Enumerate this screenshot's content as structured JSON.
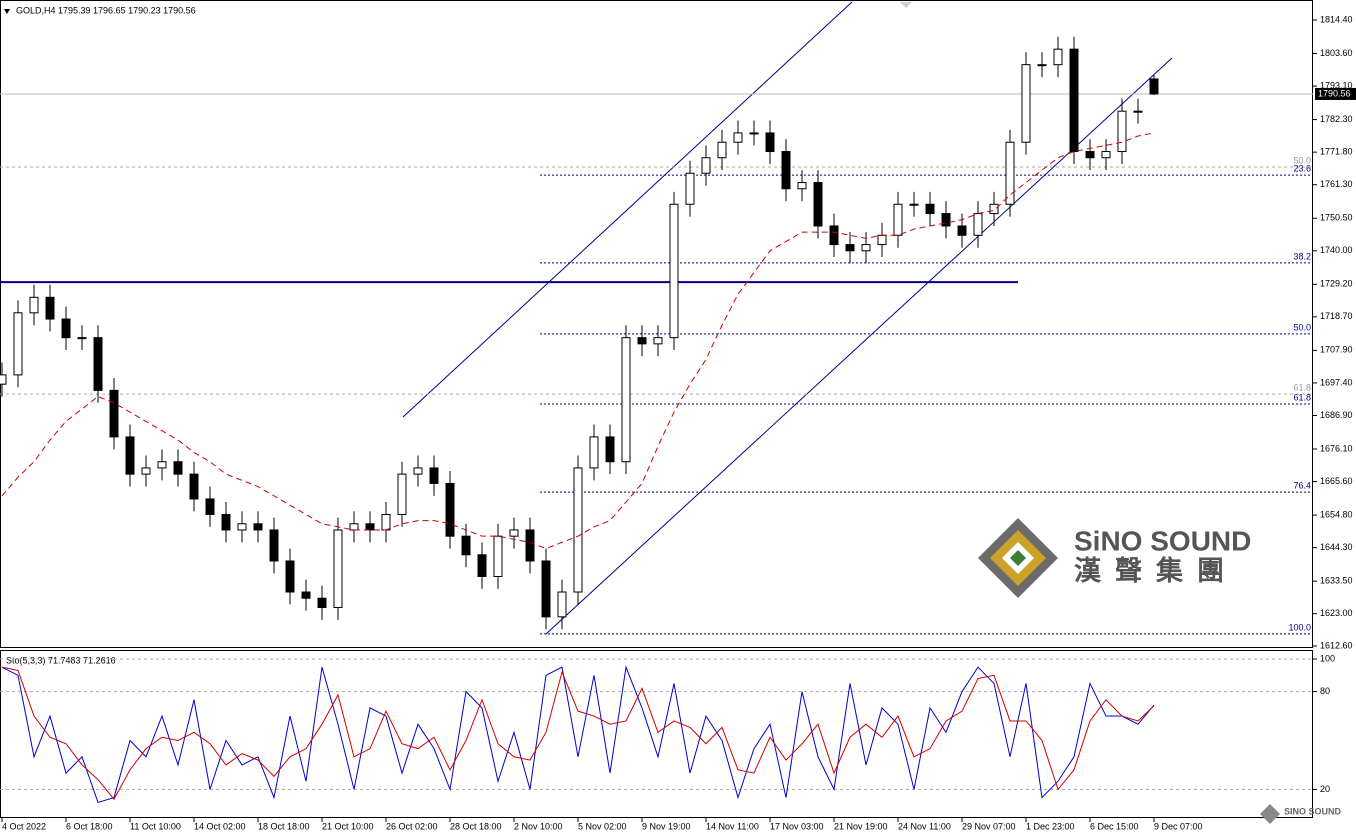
{
  "chart_data": [
    {
      "type": "candlestick",
      "header": "GOLD,H4  1795.39 1796.65 1790.23 1790.56",
      "open": [
        1697,
        1700,
        1720,
        1725,
        1718,
        1712,
        1712,
        1695,
        1680,
        1668,
        1670,
        1672,
        1668,
        1660,
        1655,
        1650,
        1652,
        1650,
        1640,
        1630,
        1628,
        1625,
        1650,
        1652,
        1650,
        1655,
        1668,
        1670,
        1665,
        1648,
        1642,
        1635,
        1648,
        1650,
        1640,
        1622,
        1630,
        1670,
        1680,
        1672,
        1712,
        1710,
        1712,
        1755,
        1765,
        1770,
        1775,
        1778,
        1778,
        1772,
        1760,
        1762,
        1748,
        1742,
        1740,
        1742,
        1745,
        1755,
        1755,
        1752,
        1748,
        1745,
        1752,
        1755,
        1775,
        1800,
        1800,
        1805,
        1772,
        1770,
        1772,
        1785,
        1795.39
      ],
      "high": [
        1704,
        1724,
        1729,
        1729,
        1722,
        1716,
        1716,
        1699,
        1684,
        1674,
        1676,
        1676,
        1672,
        1664,
        1659,
        1656,
        1656,
        1654,
        1644,
        1634,
        1632,
        1654,
        1656,
        1656,
        1659,
        1672,
        1674,
        1674,
        1669,
        1652,
        1646,
        1652,
        1654,
        1654,
        1644,
        1634,
        1674,
        1684,
        1684,
        1716,
        1716,
        1716,
        1759,
        1769,
        1774,
        1779,
        1782,
        1782,
        1782,
        1776,
        1766,
        1766,
        1752,
        1746,
        1746,
        1749,
        1759,
        1759,
        1759,
        1756,
        1752,
        1756,
        1759,
        1779,
        1804,
        1804,
        1809,
        1809,
        1776,
        1776,
        1789,
        1789,
        1796.65
      ],
      "low": [
        1693,
        1696,
        1716,
        1714,
        1708,
        1708,
        1691,
        1676,
        1664,
        1664,
        1666,
        1664,
        1656,
        1651,
        1646,
        1646,
        1646,
        1636,
        1626,
        1624,
        1621,
        1621,
        1646,
        1646,
        1646,
        1651,
        1664,
        1661,
        1644,
        1638,
        1631,
        1631,
        1644,
        1636,
        1618,
        1618,
        1626,
        1666,
        1668,
        1668,
        1706,
        1706,
        1708,
        1751,
        1761,
        1766,
        1771,
        1774,
        1768,
        1756,
        1756,
        1744,
        1738,
        1736,
        1736,
        1738,
        1741,
        1751,
        1748,
        1744,
        1741,
        1741,
        1748,
        1751,
        1771,
        1796,
        1796,
        1768,
        1766,
        1766,
        1768,
        1781,
        1790.23
      ],
      "close": [
        1700,
        1720,
        1725,
        1718,
        1712,
        1712,
        1695,
        1680,
        1668,
        1670,
        1672,
        1668,
        1660,
        1655,
        1650,
        1652,
        1650,
        1640,
        1630,
        1628,
        1625,
        1650,
        1652,
        1650,
        1655,
        1668,
        1670,
        1665,
        1648,
        1642,
        1635,
        1648,
        1650,
        1640,
        1622,
        1630,
        1670,
        1680,
        1672,
        1712,
        1710,
        1712,
        1755,
        1765,
        1770,
        1775,
        1778,
        1778,
        1772,
        1760,
        1762,
        1748,
        1742,
        1740,
        1742,
        1745,
        1755,
        1755,
        1752,
        1748,
        1745,
        1752,
        1755,
        1775,
        1800,
        1800,
        1805,
        1772,
        1770,
        1772,
        1785,
        1785,
        1790.56
      ],
      "overlays": [
        {
          "color": "#cc0000",
          "values": [
            1661,
            1667,
            1672,
            1679,
            1685,
            1689,
            1693,
            1691,
            1688,
            1685,
            1682,
            1679,
            1675,
            1672,
            1668,
            1666,
            1664,
            1661,
            1658,
            1655,
            1652,
            1651,
            1650,
            1650,
            1650,
            1652,
            1653,
            1653,
            1652,
            1650,
            1648,
            1648,
            1647,
            1646,
            1644,
            1646,
            1648,
            1651,
            1653,
            1659,
            1665,
            1677,
            1688,
            1697,
            1705,
            1716,
            1726,
            1733,
            1740,
            1743,
            1746,
            1746,
            1746,
            1745,
            1744,
            1745,
            1745,
            1747,
            1748,
            1749,
            1750,
            1752,
            1753,
            1758,
            1762,
            1766,
            1770,
            1772,
            1773,
            1774,
            1775,
            1777,
            1778
          ]
        }
      ],
      "fib_levels": [
        {
          "level": "23.6",
          "price": 1764.4
        },
        {
          "level": "38.2",
          "price": 1736.1
        },
        {
          "level": "50.0",
          "price": 1713.2
        },
        {
          "level": "61.8",
          "price": 1690.6
        },
        {
          "level": "76.4",
          "price": 1662.2
        },
        {
          "level": "100.0",
          "price": 1616.5
        }
      ],
      "gray_levels": [
        {
          "level": "50.0",
          "price": 1767
        },
        {
          "level": "61.8",
          "price": 1693.8
        }
      ],
      "hline": {
        "price": 1729.9,
        "color": "#00008b"
      },
      "xlim": [
        -0.125,
        81.9375
      ],
      "ylim": [
        1611.95,
        1820.85
      ],
      "yticks": [
        {
          "value": 1814.4,
          "label": "1814.40"
        },
        {
          "value": 1803.6,
          "label": "1803.60"
        },
        {
          "value": 1793.1,
          "label": "1793.10"
        },
        {
          "value": 1782.3,
          "label": "1782.30"
        },
        {
          "value": 1771.8,
          "label": "1771.80"
        },
        {
          "value": 1761.3,
          "label": "1761.30"
        },
        {
          "value": 1750.5,
          "label": "1750.50"
        },
        {
          "value": 1740,
          "label": "1740.00"
        },
        {
          "value": 1729.2,
          "label": "1729.20"
        },
        {
          "value": 1718.7,
          "label": "1718.70"
        },
        {
          "value": 1707.9,
          "label": "1707.90"
        },
        {
          "value": 1697.4,
          "label": "1697.40"
        },
        {
          "value": 1686.9,
          "label": "1686.90"
        },
        {
          "value": 1676.1,
          "label": "1676.10"
        },
        {
          "value": 1665.6,
          "label": "1665.60"
        },
        {
          "value": 1654.8,
          "label": "1654.80"
        },
        {
          "value": 1644.3,
          "label": "1644.30"
        },
        {
          "value": 1633.5,
          "label": "1633.50"
        },
        {
          "value": 1623,
          "label": "1623.00"
        },
        {
          "value": 1612.6,
          "label": "1612.60"
        }
      ],
      "xticks": [
        {
          "value": 0,
          "label": "4 Oct 2022"
        },
        {
          "value": 4,
          "label": "6 Oct 18:00"
        },
        {
          "value": 8,
          "label": "11 Oct 10:00"
        },
        {
          "value": 12,
          "label": "14 Oct 02:00"
        },
        {
          "value": 16,
          "label": "18 Oct 18:00"
        },
        {
          "value": 20,
          "label": "21 Oct 10:00"
        },
        {
          "value": 24,
          "label": "26 Oct 02:00"
        },
        {
          "value": 28,
          "label": "28 Oct 18:00"
        },
        {
          "value": 32,
          "label": "2 Nov 10:00"
        },
        {
          "value": 36,
          "label": "5 Nov 02:00"
        },
        {
          "value": 40,
          "label": "9 Nov 19:00"
        },
        {
          "value": 44,
          "label": "14 Nov 11:00"
        },
        {
          "value": 48,
          "label": "17 Nov 03:00"
        },
        {
          "value": 52,
          "label": "21 Nov 19:00"
        },
        {
          "value": 56,
          "label": "24 Nov 11:00"
        },
        {
          "value": 60,
          "label": "29 Nov 07:00"
        },
        {
          "value": 64,
          "label": "1 Dec 23:00"
        },
        {
          "value": 68,
          "label": "6 Dec 15:00"
        },
        {
          "value": 72,
          "label": "9 Dec 07:00"
        }
      ]
    },
    {
      "type": "line",
      "header": "Sto(5,3,3) 71.7483 71.2616",
      "lines": [
        {
          "color": "#0000cc",
          "values": [
            95,
            90,
            40,
            65,
            30,
            40,
            12,
            15,
            50,
            40,
            65,
            35,
            75,
            20,
            50,
            35,
            40,
            15,
            65,
            25,
            95,
            60,
            20,
            70,
            65,
            30,
            60,
            45,
            20,
            80,
            70,
            25,
            55,
            20,
            90,
            95,
            40,
            90,
            30,
            95,
            70,
            40,
            85,
            30,
            65,
            50,
            15,
            45,
            60,
            15,
            80,
            40,
            20,
            85,
            35,
            70,
            60,
            20,
            70,
            55,
            80,
            95,
            85,
            40,
            85,
            15,
            25,
            40,
            85,
            65,
            65,
            60,
            71.7483
          ]
        },
        {
          "color": "#cc0000",
          "values": [
            95,
            93,
            65,
            52,
            48,
            35,
            26,
            14,
            32,
            45,
            52,
            50,
            55,
            48,
            35,
            42,
            38,
            28,
            40,
            45,
            60,
            78,
            40,
            45,
            68,
            48,
            45,
            52,
            32,
            50,
            75,
            48,
            40,
            38,
            55,
            92,
            68,
            65,
            60,
            62,
            82,
            55,
            62,
            58,
            48,
            58,
            32,
            30,
            52,
            38,
            48,
            60,
            30,
            52,
            60,
            52,
            65,
            40,
            45,
            62,
            68,
            88,
            90,
            62,
            62,
            50,
            20,
            32,
            62,
            75,
            65,
            62,
            71.2616
          ]
        }
      ],
      "xlim": [
        -0.125,
        81.9375
      ],
      "ylim": [
        2.45,
        104.3
      ],
      "yticks": [
        20,
        80,
        100
      ]
    }
  ],
  "watermark": {
    "en": "SiNO SOUND",
    "zh": "漢聲集團",
    "small": "SINO SOUND"
  }
}
